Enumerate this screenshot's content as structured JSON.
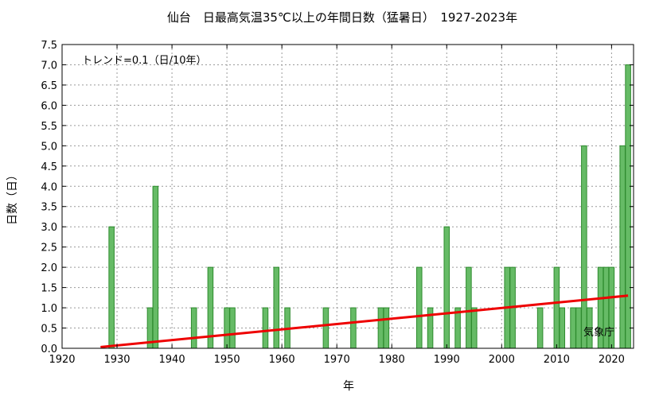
{
  "chart_data": {
    "type": "bar",
    "title": "仙台　日最高気温35℃以上の年間日数（猛暑日）　1927-2023年",
    "xlabel": "年",
    "ylabel": "日数（日）",
    "trend_label": "トレンド=0.1（日/10年）",
    "source": "気象庁",
    "xlim": [
      1920,
      2024
    ],
    "ylim": [
      0,
      7.5
    ],
    "x_ticks": [
      1920,
      1930,
      1940,
      1950,
      1960,
      1970,
      1980,
      1990,
      2000,
      2010,
      2020
    ],
    "y_ticks": [
      0.0,
      0.5,
      1.0,
      1.5,
      2.0,
      2.5,
      3.0,
      3.5,
      4.0,
      4.5,
      5.0,
      5.5,
      6.0,
      6.5,
      7.0,
      7.5
    ],
    "grid": true,
    "bars": [
      {
        "year": 1929,
        "days": 3
      },
      {
        "year": 1936,
        "days": 1
      },
      {
        "year": 1937,
        "days": 4
      },
      {
        "year": 1944,
        "days": 1
      },
      {
        "year": 1947,
        "days": 2
      },
      {
        "year": 1950,
        "days": 1
      },
      {
        "year": 1951,
        "days": 1
      },
      {
        "year": 1957,
        "days": 1
      },
      {
        "year": 1959,
        "days": 2
      },
      {
        "year": 1961,
        "days": 1
      },
      {
        "year": 1968,
        "days": 1
      },
      {
        "year": 1973,
        "days": 1
      },
      {
        "year": 1978,
        "days": 1
      },
      {
        "year": 1979,
        "days": 1
      },
      {
        "year": 1985,
        "days": 2
      },
      {
        "year": 1987,
        "days": 1
      },
      {
        "year": 1990,
        "days": 3
      },
      {
        "year": 1992,
        "days": 1
      },
      {
        "year": 1994,
        "days": 2
      },
      {
        "year": 1995,
        "days": 1
      },
      {
        "year": 2001,
        "days": 2
      },
      {
        "year": 2002,
        "days": 2
      },
      {
        "year": 2007,
        "days": 1
      },
      {
        "year": 2010,
        "days": 2
      },
      {
        "year": 2011,
        "days": 1
      },
      {
        "year": 2013,
        "days": 1
      },
      {
        "year": 2014,
        "days": 1
      },
      {
        "year": 2015,
        "days": 5
      },
      {
        "year": 2016,
        "days": 1
      },
      {
        "year": 2018,
        "days": 2
      },
      {
        "year": 2019,
        "days": 2
      },
      {
        "year": 2020,
        "days": 2
      },
      {
        "year": 2022,
        "days": 5
      },
      {
        "year": 2023,
        "days": 7
      }
    ],
    "trend": {
      "x": [
        1927,
        2023
      ],
      "y": [
        0.03,
        1.3
      ],
      "color": "#ee0000"
    },
    "colors": {
      "bar_fill": "#66bb66",
      "bar_stroke": "#2e8b2e",
      "trend": "#ee0000"
    }
  }
}
